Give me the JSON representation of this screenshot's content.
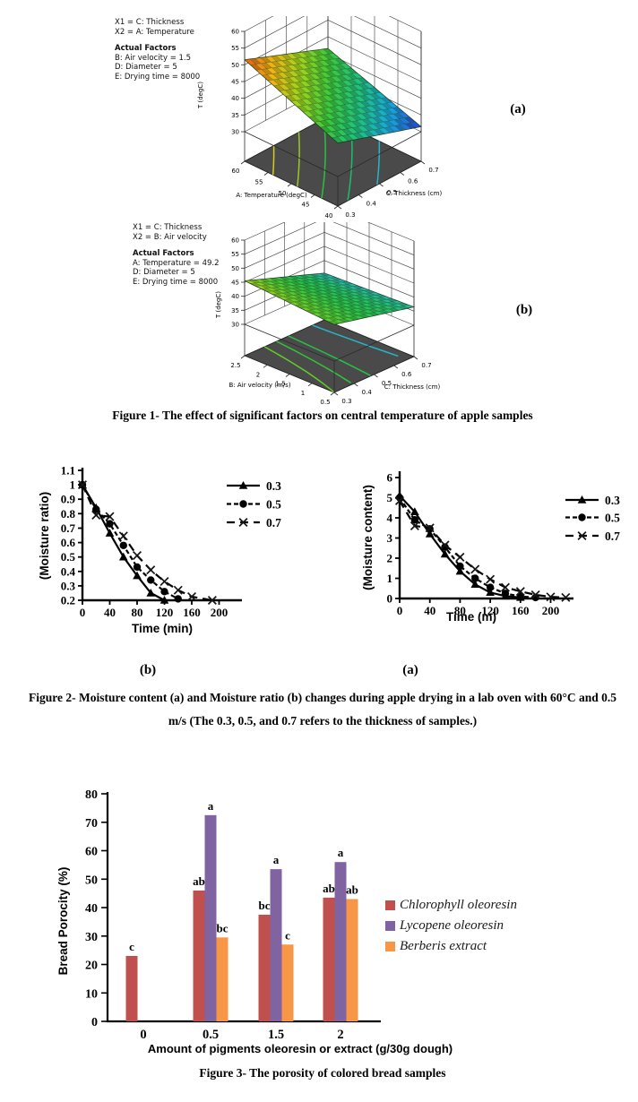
{
  "figure1": {
    "caption": "Figure 1- The effect of significant factors on central temperature of apple samples",
    "panel_a": {
      "label": "(a)",
      "info": {
        "x1": "X1 = C: Thickness",
        "x2": "X2 = A: Temperature",
        "factors_title": "Actual Factors",
        "factors": [
          "B: Air velocity = 1.5",
          "D: Diameter = 5",
          "E: Drying time = 8000"
        ]
      }
    },
    "panel_b": {
      "label": "(b)",
      "info": {
        "x1": "X1 = C: Thickness",
        "x2": "X2 = B: Air velocity",
        "factors_title": "Actual Factors",
        "factors": [
          "A: Temperature = 49.2",
          "D: Diameter = 5",
          "E: Drying time = 8000"
        ]
      }
    }
  },
  "figure2": {
    "panel_b_label": "(b)",
    "panel_a_label": "(a)",
    "caption_line1": "Figure 2- Moisture content (a) and Moisture ratio (b) changes during apple drying in a lab oven with 60°C and 0.5",
    "caption_line2": "m/s (The 0.3, 0.5, and 0.7 refers to the thickness of samples.)"
  },
  "figure3": {
    "caption": "Figure 3- The porosity of colored bread samples"
  },
  "chart_data": [
    {
      "id": "fig1a",
      "type": "surface3d",
      "zlabel": "T (degC)",
      "xlabel": "A: Temperature (degC)",
      "ylabel": "C: Thickness (cm)",
      "z_ticks": [
        30,
        35,
        40,
        45,
        50,
        55,
        60
      ],
      "x_ticks": [
        60,
        55,
        50,
        45,
        40
      ],
      "y_ticks": [
        0.3,
        0.4,
        0.5,
        0.6,
        0.7
      ],
      "zlim": [
        30,
        60
      ],
      "surface_range": [
        31.5,
        51.5
      ],
      "corners_z": {
        "left": 51.5,
        "front": 40,
        "right": 31.5,
        "back": 41.5
      },
      "corners_note": "left=(A=60,C=0.3) front=(A=40,C=0.3) right=(A=40,C=0.7) back=(A=60,C=0.7)",
      "color_scale": [
        "#2a3fd4",
        "#18a8e0",
        "#20c080",
        "#3cc83c",
        "#a0d41c",
        "#f0b414",
        "#e85c14"
      ],
      "floor_color": "#4a4a4a",
      "contours": [
        {
          "z": 48,
          "color": "#d4cc20"
        },
        {
          "z": 45,
          "color": "#9cc828"
        },
        {
          "z": 42,
          "color": "#2cc040"
        },
        {
          "z": 39,
          "color": "#1cbc6c"
        },
        {
          "z": 36,
          "color": "#28b4cc"
        }
      ]
    },
    {
      "id": "fig1b",
      "type": "surface3d",
      "zlabel": "T (degC)",
      "xlabel": "B: Air velocity (m/s)",
      "ylabel": "C: Thickness (cm)",
      "z_ticks": [
        30,
        35,
        40,
        45,
        50,
        55,
        60
      ],
      "x_ticks": [
        2.5,
        2,
        1.5,
        1,
        0.5
      ],
      "y_ticks": [
        0.3,
        0.4,
        0.5,
        0.6,
        0.7
      ],
      "zlim": [
        30,
        60
      ],
      "surface_range": [
        35.5,
        45.5
      ],
      "corners_z": {
        "left": 45.5,
        "front": 43,
        "right": 36.5,
        "back": 35.5
      },
      "corners_note": "left=(B=2.5,C=0.3) front=(B=0.5,C=0.3) right=(B=0.5,C=0.7) back=(B=2.5,C=0.7)",
      "color_scale": [
        "#2cb4c4",
        "#24c06c",
        "#2cc448",
        "#5ccc30",
        "#aad01c"
      ],
      "floor_color": "#4a4a4a",
      "contours": [
        {
          "z": 43,
          "color": "#64cc2c"
        },
        {
          "z": 41.5,
          "color": "#34c43c"
        },
        {
          "z": 40,
          "color": "#28c048"
        },
        {
          "z": 38.5,
          "color": "#24bc74"
        },
        {
          "z": 37,
          "color": "#28b4c8"
        }
      ]
    },
    {
      "id": "fig2b",
      "type": "line",
      "xlabel": "Time (min)",
      "ylabel": "(Moisture ratio)",
      "xlim": [
        0,
        230
      ],
      "ylim": [
        0.2,
        1.1
      ],
      "x_ticks": [
        0,
        40,
        80,
        120,
        160,
        200
      ],
      "y_ticks": [
        0.2,
        0.3,
        0.4,
        0.5,
        0.6,
        0.7,
        0.8,
        0.9,
        1,
        1.1
      ],
      "legend_position": "top-right",
      "series": [
        {
          "name": "0.3",
          "marker": "triangle",
          "dash": "solid",
          "points": [
            [
              0,
              1.0
            ],
            [
              20,
              0.84
            ],
            [
              40,
              0.665
            ],
            [
              60,
              0.5
            ],
            [
              80,
              0.37
            ],
            [
              100,
              0.25
            ],
            [
              120,
              0.2
            ]
          ]
        },
        {
          "name": "0.5",
          "marker": "circle",
          "dash": "dash",
          "points": [
            [
              0,
              1.0
            ],
            [
              20,
              0.83
            ],
            [
              40,
              0.73
            ],
            [
              60,
              0.58
            ],
            [
              80,
              0.43
            ],
            [
              100,
              0.34
            ],
            [
              120,
              0.26
            ],
            [
              140,
              0.21
            ]
          ]
        },
        {
          "name": "0.7",
          "marker": "x",
          "dash": "longdash",
          "points": [
            [
              0,
              1.0
            ],
            [
              20,
              0.79
            ],
            [
              40,
              0.78
            ],
            [
              60,
              0.645
            ],
            [
              80,
              0.51
            ],
            [
              100,
              0.41
            ],
            [
              120,
              0.33
            ],
            [
              140,
              0.27
            ],
            [
              160,
              0.225
            ],
            [
              190,
              0.2
            ]
          ]
        }
      ]
    },
    {
      "id": "fig2a",
      "type": "line",
      "xlabel": "Time (m)",
      "ylabel": "(Moisture content)",
      "xlim": [
        0,
        230
      ],
      "ylim": [
        0,
        6
      ],
      "x_ticks": [
        0,
        40,
        80,
        120,
        160,
        200
      ],
      "y_ticks": [
        0,
        1,
        2,
        3,
        4,
        5,
        6
      ],
      "legend_position": "right",
      "series": [
        {
          "name": "0.3",
          "marker": "triangle",
          "dash": "solid",
          "points": [
            [
              0,
              5.1
            ],
            [
              20,
              4.3
            ],
            [
              40,
              3.2
            ],
            [
              60,
              2.2
            ],
            [
              80,
              1.35
            ],
            [
              100,
              0.7
            ],
            [
              120,
              0.3
            ],
            [
              140,
              0.12
            ],
            [
              160,
              0.05
            ]
          ]
        },
        {
          "name": "0.5",
          "marker": "circle",
          "dash": "dash",
          "points": [
            [
              0,
              5.0
            ],
            [
              20,
              3.9
            ],
            [
              40,
              3.45
            ],
            [
              60,
              2.55
            ],
            [
              80,
              1.6
            ],
            [
              100,
              1.0
            ],
            [
              120,
              0.55
            ],
            [
              140,
              0.25
            ],
            [
              160,
              0.1
            ],
            [
              180,
              0.05
            ]
          ]
        },
        {
          "name": "0.7",
          "marker": "x",
          "dash": "longdash",
          "points": [
            [
              0,
              4.85
            ],
            [
              20,
              3.6
            ],
            [
              40,
              3.5
            ],
            [
              60,
              2.65
            ],
            [
              80,
              2.05
            ],
            [
              100,
              1.45
            ],
            [
              120,
              0.95
            ],
            [
              140,
              0.55
            ],
            [
              160,
              0.35
            ],
            [
              180,
              0.18
            ],
            [
              200,
              0.08
            ],
            [
              220,
              0.05
            ]
          ]
        }
      ]
    },
    {
      "id": "fig3",
      "type": "bar",
      "xlabel": "Amount of pigments oleoresin or extract (g/30g dough)",
      "ylabel": "Bread Porocity (%)",
      "ylim": [
        0,
        80
      ],
      "y_ticks": [
        0,
        10,
        20,
        30,
        40,
        50,
        60,
        70,
        80
      ],
      "categories": [
        "0",
        "0.5",
        "1.5",
        "2"
      ],
      "legend_position": "right",
      "series": [
        {
          "name": "Chlorophyll oleoresin",
          "color": "#c0504d",
          "values": [
            23,
            46,
            37.5,
            43.5
          ],
          "labels": [
            "c",
            "ab",
            "bc",
            "ab"
          ]
        },
        {
          "name": "Lycopene oleoresin",
          "color": "#8064a2",
          "values": [
            null,
            72.5,
            53.5,
            56
          ],
          "labels": [
            "",
            "a",
            "a",
            "a"
          ]
        },
        {
          "name": "Berberis extract",
          "color": "#f79646",
          "values": [
            null,
            29.5,
            27,
            43
          ],
          "labels": [
            "",
            "bc",
            "c",
            "ab"
          ]
        }
      ]
    }
  ]
}
